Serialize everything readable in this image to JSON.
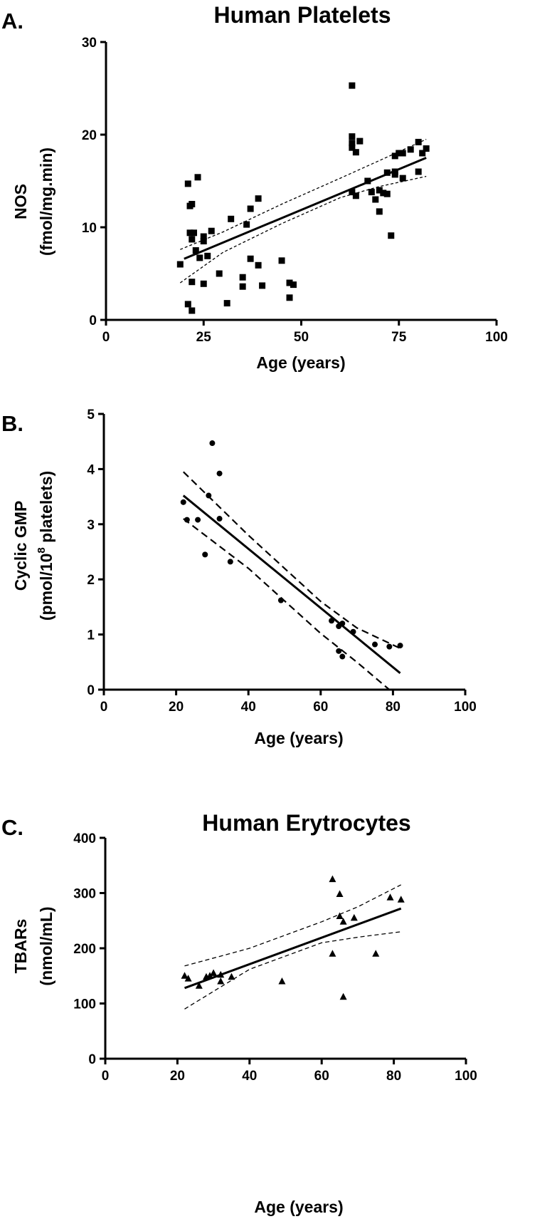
{
  "chart_data": [
    {
      "panel_label": "A.",
      "title": "Human Platelets",
      "type": "scatter",
      "xlabel": "Age (years)",
      "ylabel_line1": "NOS",
      "ylabel_line2": "(fmol/mg.min)",
      "xlim": [
        0,
        100
      ],
      "ylim": [
        0,
        30
      ],
      "xticks": [
        0,
        25,
        50,
        75,
        100
      ],
      "yticks": [
        0,
        10,
        20,
        30
      ],
      "marker": "square",
      "grid": false,
      "legend": "none",
      "points": [
        [
          19,
          6
        ],
        [
          21,
          14.7
        ],
        [
          21.5,
          12.3
        ],
        [
          22,
          12.5
        ],
        [
          21.5,
          9.4
        ],
        [
          22.5,
          9.4
        ],
        [
          22,
          8.7
        ],
        [
          23.5,
          15.4
        ],
        [
          23,
          7.5
        ],
        [
          24,
          6.7
        ],
        [
          25,
          9
        ],
        [
          25,
          8.5
        ],
        [
          26,
          6.9
        ],
        [
          27,
          9.6
        ],
        [
          21,
          1.7
        ],
        [
          22,
          1
        ],
        [
          22,
          4.1
        ],
        [
          25,
          3.9
        ],
        [
          29,
          5
        ],
        [
          31,
          1.8
        ],
        [
          32,
          10.9
        ],
        [
          35,
          4.6
        ],
        [
          35,
          3.6
        ],
        [
          36,
          10.3
        ],
        [
          37,
          12
        ],
        [
          37,
          6.6
        ],
        [
          39,
          13.1
        ],
        [
          39,
          5.9
        ],
        [
          40,
          3.7
        ],
        [
          45,
          6.4
        ],
        [
          47,
          4
        ],
        [
          47,
          2.4
        ],
        [
          48,
          3.8
        ],
        [
          63,
          25.3
        ],
        [
          63,
          19.8
        ],
        [
          63,
          19.1
        ],
        [
          63,
          18.6
        ],
        [
          63,
          13.8
        ],
        [
          64,
          13.4
        ],
        [
          64,
          18.1
        ],
        [
          65,
          19.3
        ],
        [
          67,
          15
        ],
        [
          68,
          13.8
        ],
        [
          69,
          13
        ],
        [
          70,
          14
        ],
        [
          70,
          11.7
        ],
        [
          71,
          13.7
        ],
        [
          72,
          13.6
        ],
        [
          72,
          15.9
        ],
        [
          73,
          9.1
        ],
        [
          74,
          17.7
        ],
        [
          74,
          15.7
        ],
        [
          74,
          16
        ],
        [
          75,
          18
        ],
        [
          76,
          18
        ],
        [
          76,
          15.3
        ],
        [
          78,
          18.4
        ],
        [
          80,
          19.2
        ],
        [
          80,
          16
        ],
        [
          81,
          18
        ],
        [
          82,
          18.5
        ]
      ],
      "fit_line": [
        [
          20,
          6.6
        ],
        [
          82,
          17.5
        ]
      ],
      "ci_upper": [
        [
          19,
          7.6
        ],
        [
          30,
          9.5
        ],
        [
          45,
          12.5
        ],
        [
          60,
          15.3
        ],
        [
          70,
          17.2
        ],
        [
          82,
          19.5
        ]
      ],
      "ci_lower": [
        [
          19,
          4
        ],
        [
          30,
          7.3
        ],
        [
          45,
          10.4
        ],
        [
          60,
          13.2
        ],
        [
          70,
          14.4
        ],
        [
          82,
          15.5
        ]
      ]
    },
    {
      "panel_label": "B.",
      "title": "",
      "type": "scatter",
      "xlabel": "Age (years)",
      "ylabel_line1": "Cyclic GMP",
      "ylabel_line2_pre": "(pmol/10",
      "ylabel_line2_sup": "8",
      "ylabel_line2_post": " platelets)",
      "xlim": [
        0,
        100
      ],
      "ylim": [
        0,
        5
      ],
      "xticks": [
        0,
        20,
        40,
        60,
        80,
        100
      ],
      "yticks": [
        0,
        1,
        2,
        3,
        4,
        5
      ],
      "marker": "circle",
      "grid": false,
      "legend": "none",
      "points": [
        [
          22,
          3.4
        ],
        [
          23,
          3.08
        ],
        [
          26,
          3.08
        ],
        [
          28,
          2.45
        ],
        [
          29,
          3.52
        ],
        [
          30,
          4.47
        ],
        [
          32,
          3.92
        ],
        [
          32,
          3.1
        ],
        [
          35,
          2.32
        ],
        [
          49,
          1.62
        ],
        [
          63,
          1.25
        ],
        [
          65,
          1.15
        ],
        [
          65,
          0.7
        ],
        [
          66,
          1.2
        ],
        [
          66,
          0.6
        ],
        [
          69,
          1.05
        ],
        [
          75,
          0.82
        ],
        [
          79,
          0.78
        ],
        [
          82,
          0.8
        ]
      ],
      "fit_line": [
        [
          22,
          3.52
        ],
        [
          82,
          0.3
        ]
      ],
      "ci_upper": [
        [
          22,
          3.95
        ],
        [
          40,
          2.8
        ],
        [
          60,
          1.6
        ],
        [
          70,
          1.12
        ],
        [
          82,
          0.75
        ]
      ],
      "ci_lower": [
        [
          22,
          3.1
        ],
        [
          40,
          2.2
        ],
        [
          60,
          1.02
        ],
        [
          70,
          0.5
        ],
        [
          79,
          0
        ]
      ]
    },
    {
      "panel_label": "C.",
      "title": "Human Erytrocytes",
      "type": "scatter",
      "xlabel": "Age (years)",
      "ylabel_line1": "TBARs",
      "ylabel_line2": "(nmol/mL)",
      "xlim": [
        0,
        100
      ],
      "ylim": [
        0,
        400
      ],
      "xticks": [
        0,
        20,
        40,
        60,
        80,
        100
      ],
      "yticks": [
        0,
        100,
        200,
        300,
        400
      ],
      "marker": "triangle",
      "grid": false,
      "legend": "none",
      "points": [
        [
          22,
          150
        ],
        [
          23,
          145
        ],
        [
          26,
          132
        ],
        [
          28,
          148
        ],
        [
          29,
          150
        ],
        [
          30,
          155
        ],
        [
          32,
          140
        ],
        [
          32,
          152
        ],
        [
          35,
          148
        ],
        [
          49,
          140
        ],
        [
          63,
          190
        ],
        [
          63,
          325
        ],
        [
          65,
          298
        ],
        [
          65,
          258
        ],
        [
          66,
          248
        ],
        [
          66,
          112
        ],
        [
          69,
          255
        ],
        [
          75,
          190
        ],
        [
          79,
          292
        ],
        [
          82,
          288
        ]
      ],
      "fit_line": [
        [
          22,
          128
        ],
        [
          82,
          272
        ]
      ],
      "ci_upper": [
        [
          22,
          168
        ],
        [
          40,
          200
        ],
        [
          60,
          248
        ],
        [
          70,
          275
        ],
        [
          82,
          315
        ]
      ],
      "ci_lower": [
        [
          22,
          90
        ],
        [
          40,
          162
        ],
        [
          60,
          210
        ],
        [
          70,
          220
        ],
        [
          82,
          230
        ]
      ]
    }
  ]
}
